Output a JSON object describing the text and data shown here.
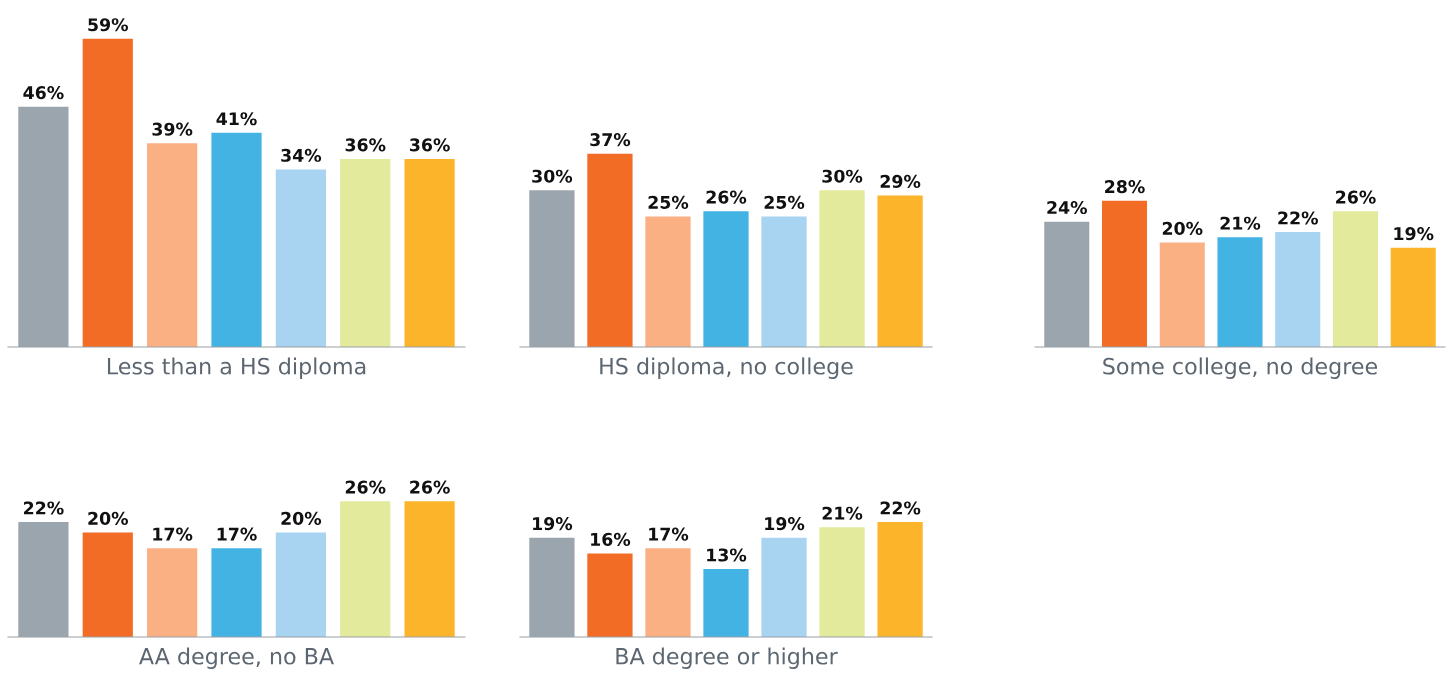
{
  "chart_data": [
    {
      "type": "bar",
      "xlabel": "Less than a HS diploma",
      "categories": [
        null,
        null,
        null,
        null,
        null,
        null,
        null
      ],
      "values": [
        46,
        59,
        39,
        41,
        34,
        36,
        36
      ],
      "value_labels": [
        "46%",
        "59%",
        "39%",
        "41%",
        "34%",
        "36%",
        "36%"
      ],
      "colors": [
        "#9ba5ae",
        "#f26c25",
        "#fbb084",
        "#43b3e4",
        "#a8d4f1",
        "#e3ea9b",
        "#fcb42b"
      ]
    },
    {
      "type": "bar",
      "xlabel": "HS diploma, no college",
      "categories": [
        null,
        null,
        null,
        null,
        null,
        null,
        null
      ],
      "values": [
        30,
        37,
        25,
        26,
        25,
        30,
        29
      ],
      "value_labels": [
        "30%",
        "37%",
        "25%",
        "26%",
        "25%",
        "30%",
        "29%"
      ],
      "colors": [
        "#9ba5ae",
        "#f26c25",
        "#fbb084",
        "#43b3e4",
        "#a8d4f1",
        "#e3ea9b",
        "#fcb42b"
      ]
    },
    {
      "type": "bar",
      "xlabel": "Some college, no degree",
      "categories": [
        null,
        null,
        null,
        null,
        null,
        null,
        null
      ],
      "values": [
        24,
        28,
        20,
        21,
        22,
        26,
        19
      ],
      "value_labels": [
        "24%",
        "28%",
        "20%",
        "21%",
        "22%",
        "26%",
        "19%"
      ],
      "colors": [
        "#9ba5ae",
        "#f26c25",
        "#fbb084",
        "#43b3e4",
        "#a8d4f1",
        "#e3ea9b",
        "#fcb42b"
      ]
    },
    {
      "type": "bar",
      "xlabel": "AA degree, no BA",
      "categories": [
        null,
        null,
        null,
        null,
        null,
        null,
        null
      ],
      "values": [
        22,
        20,
        17,
        17,
        20,
        26,
        26
      ],
      "value_labels": [
        "22%",
        "20%",
        "17%",
        "17%",
        "20%",
        "26%",
        "26%"
      ],
      "colors": [
        "#9ba5ae",
        "#f26c25",
        "#fbb084",
        "#43b3e4",
        "#a8d4f1",
        "#e3ea9b",
        "#fcb42b"
      ]
    },
    {
      "type": "bar",
      "xlabel": "BA degree or higher",
      "categories": [
        null,
        null,
        null,
        null,
        null,
        null,
        null
      ],
      "values": [
        19,
        16,
        17,
        13,
        19,
        21,
        22
      ],
      "value_labels": [
        "19%",
        "16%",
        "17%",
        "13%",
        "19%",
        "21%",
        "22%"
      ],
      "colors": [
        "#9ba5ae",
        "#f26c25",
        "#fbb084",
        "#43b3e4",
        "#a8d4f1",
        "#e3ea9b",
        "#fcb42b"
      ]
    }
  ]
}
